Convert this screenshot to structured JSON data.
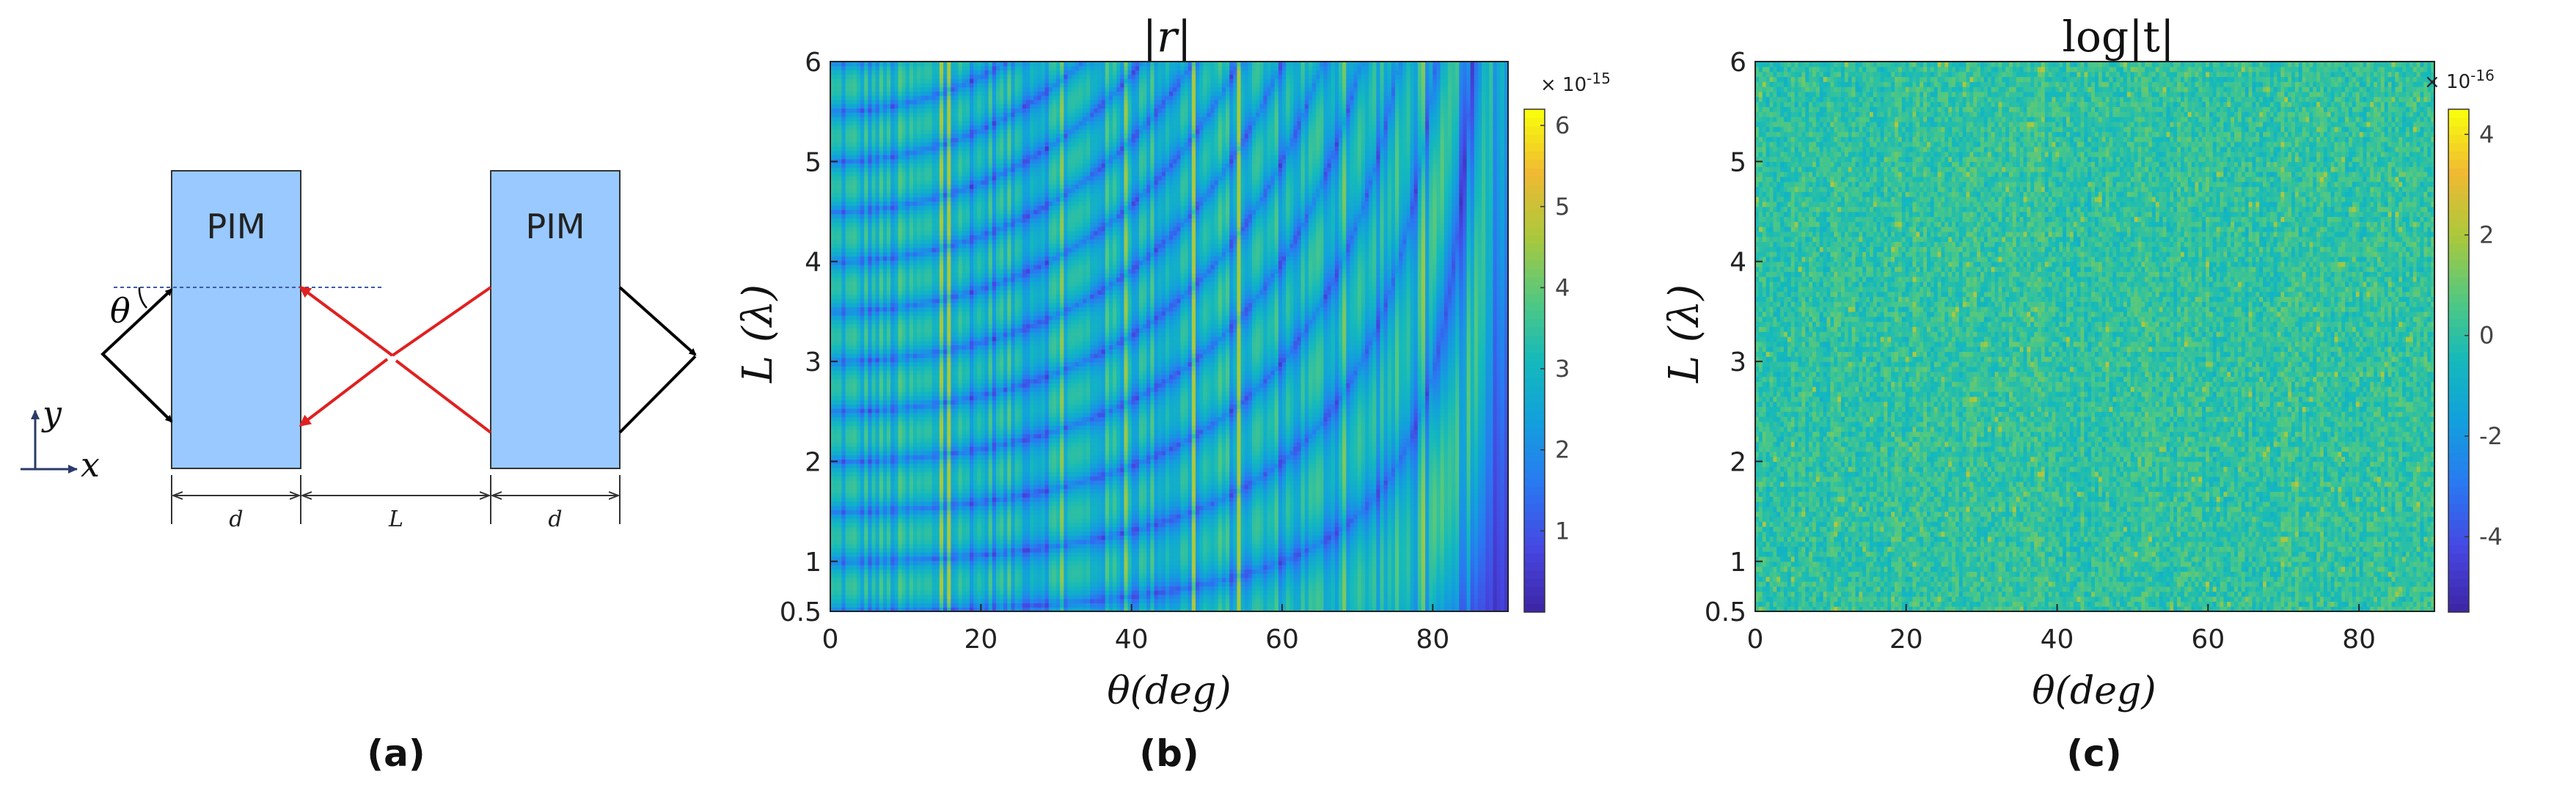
{
  "panel_a": {
    "slab_left_label": "PIM",
    "slab_right_label": "PIM",
    "angle_label": "θ",
    "axis_y_label": "y",
    "axis_x_label": "x",
    "dim_d_left": "d",
    "dim_L": "L",
    "dim_d_right": "d",
    "caption": "(a)",
    "colors": {
      "slab": "#99c9ff",
      "incident_ray": "#000000",
      "gap_ray": "#e02020"
    }
  },
  "panel_b": {
    "title": "|r|",
    "caption": "(b)",
    "colorbar_exponent": "× 10",
    "colorbar_exponent_power": "-15"
  },
  "panel_c": {
    "title": "log|t|",
    "caption": "(c)",
    "colorbar_exponent": "× 10",
    "colorbar_exponent_power": "-16"
  },
  "chart_data": [
    {
      "type": "heatmap",
      "title": "|r|",
      "xlabel": "θ(deg)",
      "ylabel": "L (λ)",
      "xlim": [
        0,
        90
      ],
      "ylim": [
        0.5,
        6
      ],
      "xticks": [
        0,
        20,
        40,
        60,
        80
      ],
      "yticks": [
        0.5,
        1,
        2,
        3,
        4,
        5,
        6
      ],
      "colorbar": {
        "min": 0,
        "max": 6.2,
        "ticks": [
          1,
          2,
          3,
          4,
          5,
          6
        ],
        "colormap": "parula"
      }
    },
    {
      "type": "heatmap",
      "title": "log|t|",
      "xlabel": "θ(deg)",
      "ylabel": "L (λ)",
      "xlim": [
        0,
        90
      ],
      "ylim": [
        0.5,
        6
      ],
      "xticks": [
        0,
        20,
        40,
        60,
        80
      ],
      "yticks": [
        0.5,
        1,
        2,
        3,
        4,
        5,
        6
      ],
      "colorbar": {
        "min": -5.5,
        "max": 4.5,
        "ticks": [
          -4,
          -2,
          0,
          2,
          4
        ],
        "colormap": "parula"
      }
    }
  ]
}
